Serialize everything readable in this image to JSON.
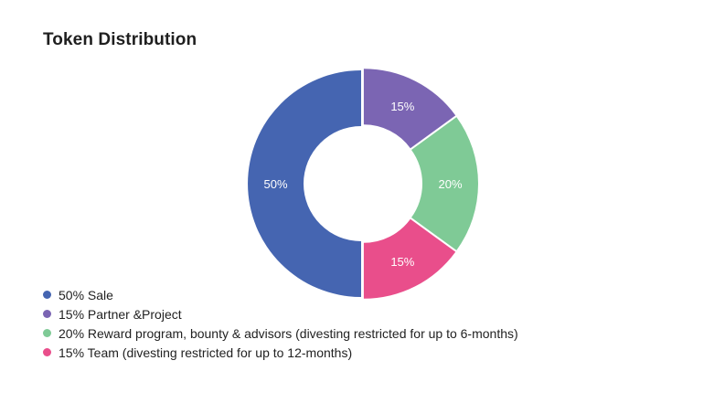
{
  "title": "Token Distribution",
  "chart_data": {
    "type": "pie",
    "variant": "donut",
    "title": "Token Distribution",
    "slices": [
      {
        "label": "50%",
        "value": 50,
        "color": "#4565b1"
      },
      {
        "label": "15%",
        "value": 15,
        "color": "#7b65b3"
      },
      {
        "label": "20%",
        "value": 20,
        "color": "#7fca96"
      },
      {
        "label": "15%",
        "value": 15,
        "color": "#e94e8b"
      }
    ],
    "legend_position": "bottom-left"
  },
  "legend": [
    {
      "label": "50% Sale",
      "color": "#4565b1"
    },
    {
      "label": "15% Partner &Project",
      "color": "#7b65b3"
    },
    {
      "label": "20% Reward program, bounty & advisors (divesting restricted for up to 6-months)",
      "color": "#7fca96"
    },
    {
      "label": "15% Team (divesting restricted for up to 12-months)",
      "color": "#e94e8b"
    }
  ]
}
